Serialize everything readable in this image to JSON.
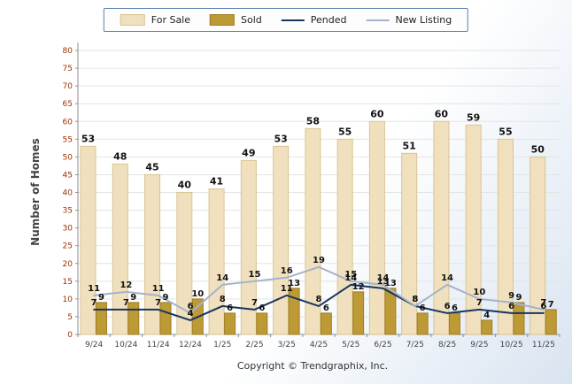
{
  "footer": "Copyright © Trendgraphix, Inc.",
  "colors": {
    "legend_border": "#5a7fae",
    "grid": "#e4e4e4",
    "axis": "#8f8f8f",
    "ytick_text": "#993300",
    "xtick_text": "#444444",
    "value_label": "#111111",
    "background_tint": "#d9e4f1"
  },
  "chart_data": {
    "type": "bar",
    "title": "",
    "xlabel": "",
    "ylabel": "Number of Homes",
    "ylim": [
      0,
      80
    ],
    "ytick_interval": 5,
    "grid": true,
    "legend_position": "top",
    "categories": [
      "9/24",
      "10/24",
      "11/24",
      "12/24",
      "1/25",
      "2/25",
      "3/25",
      "4/25",
      "5/25",
      "6/25",
      "7/25",
      "8/25",
      "9/25",
      "10/25",
      "11/25"
    ],
    "series": [
      {
        "name": "For Sale",
        "type": "bar",
        "color": "#f0e0bd",
        "border": "#d9c493",
        "values": [
          53,
          48,
          45,
          40,
          41,
          49,
          53,
          58,
          55,
          60,
          51,
          60,
          59,
          55,
          50
        ]
      },
      {
        "name": "Sold",
        "type": "bar",
        "color": "#bd9a35",
        "border": "#9e7f24",
        "values": [
          9,
          9,
          9,
          10,
          6,
          6,
          13,
          6,
          12,
          13,
          6,
          6,
          4,
          9,
          7
        ]
      },
      {
        "name": "Pended",
        "type": "line",
        "color": "#17365d",
        "values": [
          7,
          7,
          7,
          4,
          8,
          7,
          11,
          8,
          14,
          13,
          8,
          6,
          7,
          6,
          6
        ]
      },
      {
        "name": "New Listing",
        "type": "line",
        "color": "#a3b3cb",
        "values": [
          11,
          12,
          11,
          6,
          14,
          15,
          16,
          19,
          15,
          14,
          8,
          14,
          10,
          9,
          7
        ]
      }
    ]
  }
}
